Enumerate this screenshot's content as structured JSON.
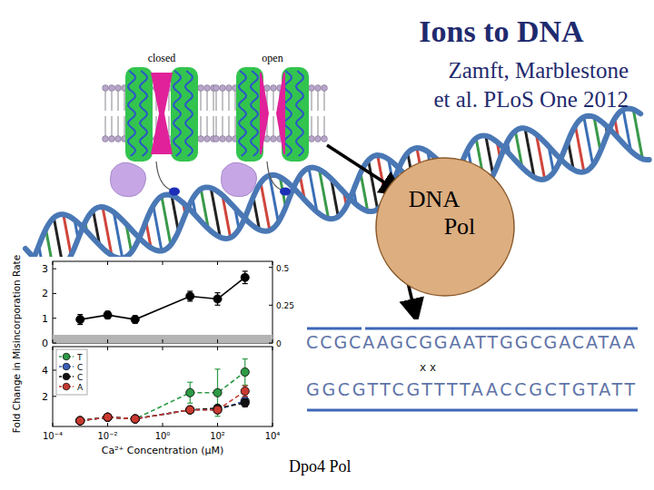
{
  "slide": {
    "title": "Ions to DNA",
    "citation": [
      "Zamft, Marblestone",
      "et al. PLoS One 2012"
    ],
    "channels": [
      "closed",
      "open"
    ],
    "enzyme": [
      "DNA",
      "Pol"
    ],
    "sequence": {
      "top": "CCGCAAGCGGAATTGGCGACATAA",
      "marks": "x x",
      "bottom": "GGCGTTCGTTTTAACCGCTGTATT"
    },
    "caption": "Dpo4 Pol"
  },
  "chart_data": [
    {
      "type": "line",
      "y_label": "Fold Change in Misincorporation Rate",
      "x": [
        0.001,
        0.01,
        0.1,
        10,
        100,
        1000
      ],
      "xlim": [
        0.0001,
        10000
      ],
      "xticks": [
        0.0001,
        0.01,
        1,
        100,
        10000
      ],
      "log": "x",
      "ylim": [
        0,
        3.3
      ],
      "yticks": [
        0,
        1,
        2,
        3
      ],
      "y2lim": [
        0,
        0.54
      ],
      "y2ticks": [
        0,
        0.25,
        0.5
      ],
      "tick_labels": "y",
      "grid": false,
      "series": [
        {
          "color": "#000000",
          "marker": "circle",
          "line_style": "solid",
          "values": [
            0.95,
            1.13,
            0.95,
            1.89,
            1.78,
            2.65
          ],
          "errors": [
            0.2,
            0.15,
            0.15,
            0.2,
            0.25,
            0.25
          ]
        }
      ]
    },
    {
      "type": "line",
      "x_label": "Ca²⁺ Concentration (µM)",
      "x": [
        0.001,
        0.01,
        0.1,
        10,
        100,
        1000
      ],
      "xlim": [
        0.0001,
        10000
      ],
      "xticks": [
        {
          "value": 0.0001,
          "label": "10⁻⁴"
        },
        {
          "value": 0.01,
          "label": "10⁻²"
        },
        {
          "value": 1,
          "label": "10⁰"
        },
        {
          "value": 100,
          "label": "10²"
        },
        {
          "value": 10000,
          "label": "10⁴"
        }
      ],
      "log": "x",
      "ylim": [
        -0.3,
        5.8
      ],
      "yticks": [
        2,
        4
      ],
      "grid": false,
      "legend": "upper left",
      "series": [
        {
          "name": "T",
          "color": "#2e9a45",
          "marker": "circle",
          "line_style": "dashed",
          "values": [
            0.14,
            0.41,
            0.28,
            2.28,
            2.28,
            3.86
          ],
          "errors": [
            0.1,
            0.15,
            0.15,
            0.8,
            1.8,
            1.0
          ]
        },
        {
          "name": "C",
          "color": "#3a5fb8",
          "marker": "circle",
          "line_style": "dashed",
          "values": [
            0.14,
            0.41,
            0.28,
            0.97,
            0.97,
            1.66
          ],
          "errors": [
            0.1,
            0.1,
            0.1,
            0.2,
            0.2,
            0.3
          ]
        },
        {
          "name": "C",
          "color": "#111111",
          "marker": "circle",
          "line_style": "dashed",
          "values": [
            0.14,
            0.41,
            0.28,
            0.97,
            1.1,
            1.5
          ],
          "errors": [
            0.1,
            0.1,
            0.1,
            0.2,
            0.2,
            0.3
          ]
        },
        {
          "name": "A",
          "color": "#c83a30",
          "marker": "circle",
          "line_style": "dashed",
          "values": [
            0.14,
            0.41,
            0.28,
            0.97,
            0.97,
            2.4
          ],
          "errors": [
            0.1,
            0.1,
            0.1,
            0.2,
            0.2,
            0.4
          ]
        }
      ]
    }
  ]
}
